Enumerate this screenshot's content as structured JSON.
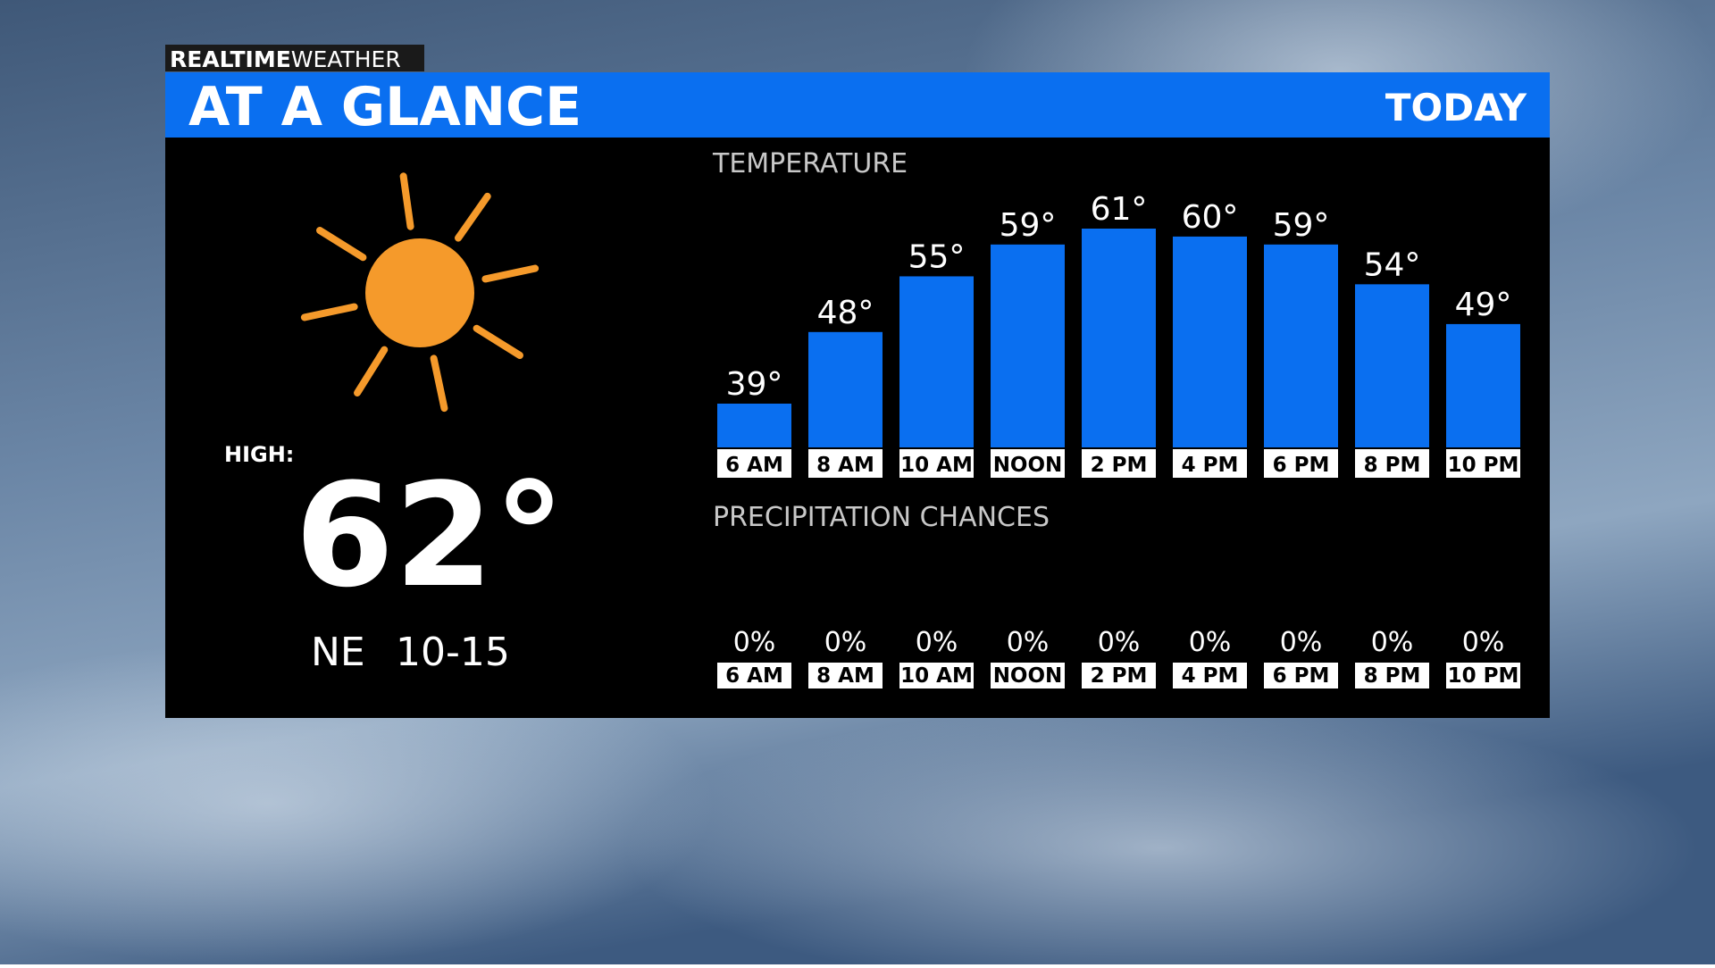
{
  "brand": {
    "bold": "REALTIME",
    "light": "WEATHER"
  },
  "title": "AT A GLANCE",
  "period": "TODAY",
  "high_label": "HIGH:",
  "high_value": "62°",
  "wind": {
    "direction": "NE",
    "speed": "10-15"
  },
  "chart_data": [
    {
      "type": "bar",
      "title": "TEMPERATURE",
      "color": "#0a6ff0",
      "categories": [
        "6 AM",
        "8 AM",
        "10 AM",
        "NOON",
        "2 PM",
        "4 PM",
        "6 PM",
        "8 PM",
        "10 PM"
      ],
      "values": [
        39,
        48,
        55,
        59,
        61,
        60,
        59,
        54,
        49
      ],
      "value_labels": [
        "39°",
        "48°",
        "55°",
        "59°",
        "61°",
        "60°",
        "59°",
        "54°",
        "49°"
      ]
    },
    {
      "type": "bar",
      "title": "PRECIPITATION CHANCES",
      "color": "#0a6ff0",
      "categories": [
        "6 AM",
        "8 AM",
        "10 AM",
        "NOON",
        "2 PM",
        "4 PM",
        "6 PM",
        "8 PM",
        "10 PM"
      ],
      "values": [
        0,
        0,
        0,
        0,
        0,
        0,
        0,
        0,
        0
      ],
      "value_labels": [
        "0%",
        "0%",
        "0%",
        "0%",
        "0%",
        "0%",
        "0%",
        "0%",
        "0%"
      ]
    }
  ]
}
